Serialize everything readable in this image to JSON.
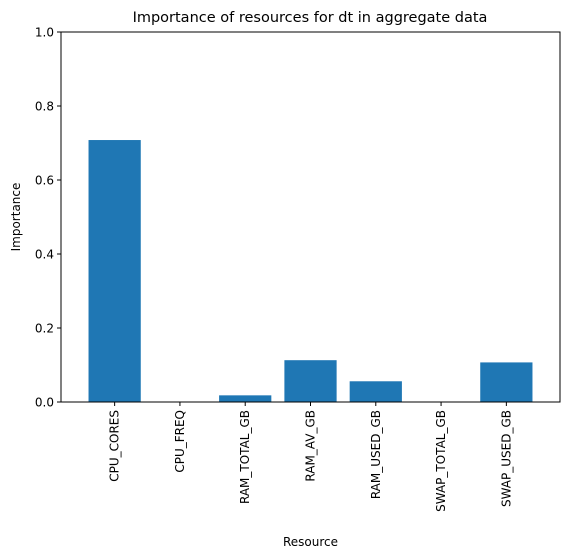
{
  "chart_data": {
    "type": "bar",
    "title": "Importance of resources for dt in aggregate data",
    "xlabel": "Resource",
    "ylabel": "Importance",
    "categories": [
      "CPU_CORES",
      "CPU_FREQ",
      "RAM_TOTAL_GB",
      "RAM_AV_GB",
      "RAM_USED_GB",
      "SWAP_TOTAL_GB",
      "SWAP_USED_GB"
    ],
    "values": [
      0.708,
      0.0,
      0.018,
      0.113,
      0.056,
      0.0,
      0.107
    ],
    "ylim": [
      0,
      1.0
    ],
    "yticks": [
      0.0,
      0.2,
      0.4,
      0.6,
      0.8,
      1.0
    ],
    "ytick_labels": [
      "0.0",
      "0.2",
      "0.4",
      "0.6",
      "0.8",
      "1.0"
    ],
    "grid": false,
    "bar_color": "#1f77b4"
  }
}
